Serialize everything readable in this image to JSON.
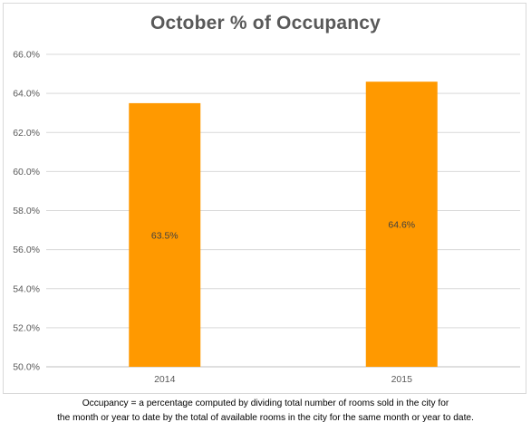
{
  "chart_data": {
    "type": "bar",
    "title": "October % of Occupancy",
    "categories": [
      "2014",
      "2015"
    ],
    "values": [
      63.5,
      64.6
    ],
    "data_labels": [
      "63.5%",
      "64.6%"
    ],
    "ylim": [
      50,
      66
    ],
    "yticks": [
      50,
      52,
      54,
      56,
      58,
      60,
      62,
      64,
      66
    ],
    "ytick_labels": [
      "50.0%",
      "52.0%",
      "54.0%",
      "56.0%",
      "58.0%",
      "60.0%",
      "62.0%",
      "64.0%",
      "66.0%"
    ],
    "xlabel": "",
    "ylabel": "",
    "grid": "horizontal",
    "legend": "none",
    "bar_color": "#FF9900"
  },
  "footnote": {
    "line1": "Occupancy = a percentage computed by dividing total number of rooms sold in the city for",
    "line2": "the month or year to date by the total of available rooms in the city for the same month or year to date."
  }
}
